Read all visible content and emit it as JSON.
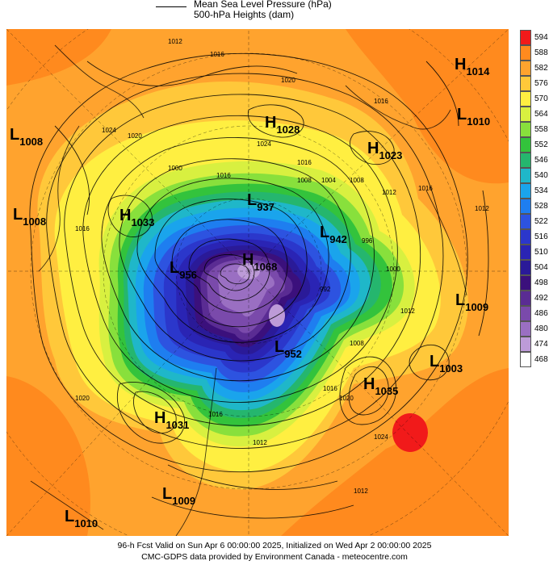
{
  "legend": {
    "line1": "Mean Sea Level Pressure (hPa)",
    "line2": "500-hPa Heights (dam)"
  },
  "colorbar": {
    "ticks": [
      "594",
      "588",
      "582",
      "576",
      "570",
      "564",
      "558",
      "552",
      "546",
      "540",
      "534",
      "528",
      "522",
      "516",
      "510",
      "504",
      "498",
      "492",
      "486",
      "480",
      "474",
      "468"
    ],
    "colors": [
      "#f11a1a",
      "#ff8a1e",
      "#ffa32e",
      "#ffc83a",
      "#ffef41",
      "#d8f040",
      "#88e03c",
      "#33c33c",
      "#25b66e",
      "#1fb7c9",
      "#1aa4ec",
      "#1e7ef0",
      "#2d53e0",
      "#2b37cb",
      "#2a24b4",
      "#2a1a98",
      "#3b107c",
      "#5a2c93",
      "#7a4aab",
      "#9a6fc2",
      "#bd9bd8",
      "#ffffff"
    ]
  },
  "pressure_centers": [
    {
      "type": "H",
      "value": "1014"
    },
    {
      "type": "L",
      "value": "1010"
    },
    {
      "type": "H",
      "value": "1028"
    },
    {
      "type": "H",
      "value": "1023"
    },
    {
      "type": "L",
      "value": "1008"
    },
    {
      "type": "L",
      "value": "1008"
    },
    {
      "type": "H",
      "value": "1033"
    },
    {
      "type": "L",
      "value": "937"
    },
    {
      "type": "L",
      "value": "942"
    },
    {
      "type": "H",
      "value": "1068"
    },
    {
      "type": "L",
      "value": "956"
    },
    {
      "type": "L",
      "value": "1009"
    },
    {
      "type": "L",
      "value": "952"
    },
    {
      "type": "L",
      "value": "1003"
    },
    {
      "type": "H",
      "value": "1035"
    },
    {
      "type": "H",
      "value": "1031"
    },
    {
      "type": "L",
      "value": "1009"
    },
    {
      "type": "L",
      "value": "1010"
    }
  ],
  "isobar_labels": [
    "1012",
    "1016",
    "1020",
    "1024",
    "1016",
    "1016",
    "1020",
    "1024",
    "1016",
    "1016",
    "1008",
    "1000",
    "1004",
    "1008",
    "1012",
    "996",
    "1000",
    "992",
    "1008",
    "1012",
    "1016",
    "1020",
    "1024",
    "1012",
    "1016",
    "1020",
    "1016",
    "1012",
    "1012"
  ],
  "footer": {
    "line1": "96-h Fcst Valid on Sun Apr  6 00:00:00 2025, Initialized on Wed Apr  2 00:00:00 2025",
    "line2": "CMC-GDPS data provided by Environment Canada - meteocentre.com"
  }
}
